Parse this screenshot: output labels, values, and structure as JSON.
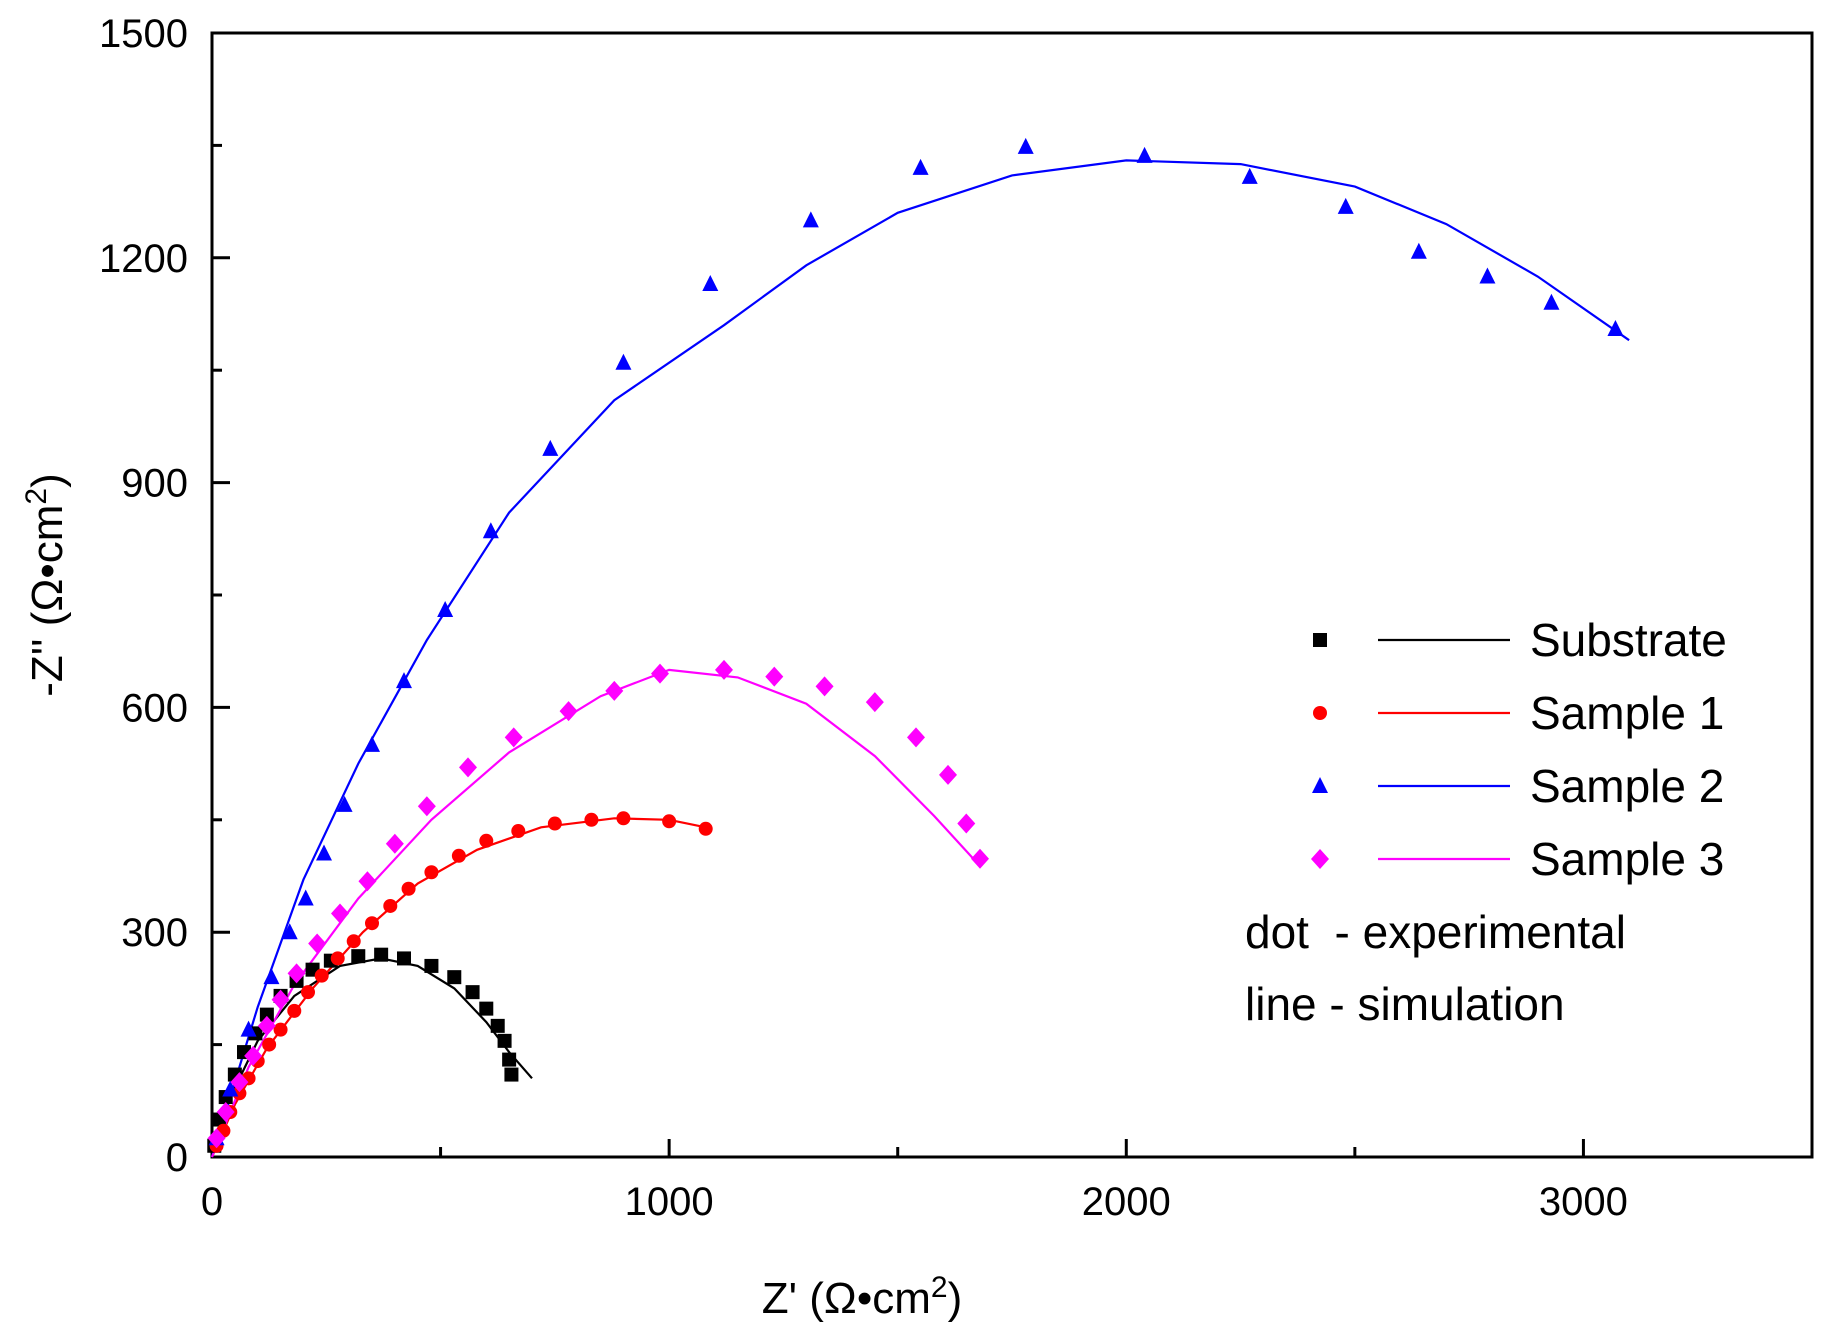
{
  "chart_data": {
    "type": "scatter",
    "title": "",
    "xlabel": {
      "main": "Z' (Ω•cm",
      "sup": "2",
      "close": ")"
    },
    "ylabel": {
      "main": "-Z'' (Ω•cm",
      "sup": "2",
      "close": ")"
    },
    "xlim": [
      0,
      3500
    ],
    "ylim": [
      0,
      1500
    ],
    "xticks": [
      0,
      1000,
      2000,
      3000
    ],
    "yticks": [
      0,
      300,
      600,
      900,
      1200,
      1500
    ],
    "grid": false,
    "legend_position": "right",
    "notes": [
      "dot  - experimental",
      "line - simulation"
    ],
    "series": [
      {
        "name": "Substrate",
        "color": "#000000",
        "marker": "square",
        "points": [
          [
            5,
            15
          ],
          [
            15,
            50
          ],
          [
            30,
            80
          ],
          [
            50,
            110
          ],
          [
            70,
            140
          ],
          [
            95,
            165
          ],
          [
            120,
            190
          ],
          [
            150,
            215
          ],
          [
            185,
            235
          ],
          [
            220,
            250
          ],
          [
            260,
            262
          ],
          [
            320,
            268
          ],
          [
            370,
            270
          ],
          [
            420,
            265
          ],
          [
            480,
            255
          ],
          [
            530,
            240
          ],
          [
            570,
            220
          ],
          [
            600,
            198
          ],
          [
            625,
            175
          ],
          [
            640,
            155
          ],
          [
            650,
            130
          ],
          [
            655,
            110
          ]
        ],
        "fit": [
          [
            0,
            0
          ],
          [
            40,
            80
          ],
          [
            100,
            155
          ],
          [
            180,
            215
          ],
          [
            280,
            255
          ],
          [
            370,
            265
          ],
          [
            450,
            255
          ],
          [
            530,
            225
          ],
          [
            600,
            180
          ],
          [
            650,
            140
          ],
          [
            700,
            105
          ]
        ]
      },
      {
        "name": "Sample 1",
        "color": "#ff0000",
        "marker": "circle",
        "points": [
          [
            10,
            15
          ],
          [
            25,
            35
          ],
          [
            40,
            60
          ],
          [
            60,
            85
          ],
          [
            80,
            105
          ],
          [
            100,
            128
          ],
          [
            125,
            150
          ],
          [
            150,
            170
          ],
          [
            180,
            195
          ],
          [
            210,
            220
          ],
          [
            240,
            242
          ],
          [
            275,
            265
          ],
          [
            310,
            288
          ],
          [
            350,
            312
          ],
          [
            390,
            335
          ],
          [
            430,
            358
          ],
          [
            480,
            380
          ],
          [
            540,
            402
          ],
          [
            600,
            422
          ],
          [
            670,
            435
          ],
          [
            750,
            445
          ],
          [
            830,
            450
          ],
          [
            900,
            452
          ],
          [
            1000,
            448
          ],
          [
            1080,
            438
          ]
        ],
        "fit": [
          [
            0,
            0
          ],
          [
            50,
            70
          ],
          [
            120,
            145
          ],
          [
            220,
            225
          ],
          [
            330,
            300
          ],
          [
            450,
            365
          ],
          [
            580,
            410
          ],
          [
            720,
            440
          ],
          [
            880,
            452
          ],
          [
            1000,
            450
          ],
          [
            1080,
            440
          ]
        ]
      },
      {
        "name": "Sample 2",
        "color": "#0000ff",
        "marker": "triangle",
        "points": [
          [
            10,
            25
          ],
          [
            40,
            90
          ],
          [
            80,
            170
          ],
          [
            130,
            240
          ],
          [
            170,
            300
          ],
          [
            205,
            345
          ],
          [
            245,
            405
          ],
          [
            290,
            470
          ],
          [
            350,
            550
          ],
          [
            420,
            635
          ],
          [
            510,
            730
          ],
          [
            610,
            835
          ],
          [
            740,
            945
          ],
          [
            900,
            1060
          ],
          [
            1090,
            1165
          ],
          [
            1310,
            1250
          ],
          [
            1550,
            1320
          ],
          [
            1780,
            1348
          ],
          [
            2040,
            1336
          ],
          [
            2270,
            1308
          ],
          [
            2480,
            1268
          ],
          [
            2640,
            1208
          ],
          [
            2790,
            1175
          ],
          [
            2930,
            1140
          ],
          [
            3070,
            1105
          ]
        ],
        "fit": [
          [
            0,
            0
          ],
          [
            100,
            200
          ],
          [
            200,
            370
          ],
          [
            320,
            525
          ],
          [
            470,
            690
          ],
          [
            650,
            860
          ],
          [
            880,
            1010
          ],
          [
            1120,
            1110
          ],
          [
            1300,
            1190
          ],
          [
            1500,
            1260
          ],
          [
            1750,
            1310
          ],
          [
            2000,
            1330
          ],
          [
            2250,
            1325
          ],
          [
            2500,
            1295
          ],
          [
            2700,
            1245
          ],
          [
            2900,
            1175
          ],
          [
            3100,
            1090
          ]
        ]
      },
      {
        "name": "Sample 3",
        "color": "#ff00ff",
        "marker": "diamond",
        "points": [
          [
            10,
            25
          ],
          [
            30,
            60
          ],
          [
            60,
            100
          ],
          [
            90,
            135
          ],
          [
            120,
            175
          ],
          [
            150,
            210
          ],
          [
            185,
            245
          ],
          [
            230,
            285
          ],
          [
            280,
            325
          ],
          [
            340,
            368
          ],
          [
            400,
            418
          ],
          [
            470,
            468
          ],
          [
            560,
            520
          ],
          [
            660,
            560
          ],
          [
            780,
            595
          ],
          [
            880,
            622
          ],
          [
            980,
            645
          ],
          [
            1120,
            650
          ],
          [
            1230,
            641
          ],
          [
            1340,
            628
          ],
          [
            1450,
            607
          ],
          [
            1540,
            560
          ],
          [
            1610,
            510
          ],
          [
            1650,
            445
          ],
          [
            1680,
            398
          ]
        ],
        "fit": [
          [
            0,
            0
          ],
          [
            80,
            120
          ],
          [
            180,
            230
          ],
          [
            320,
            345
          ],
          [
            480,
            450
          ],
          [
            650,
            540
          ],
          [
            850,
            615
          ],
          [
            1000,
            650
          ],
          [
            1150,
            640
          ],
          [
            1300,
            605
          ],
          [
            1450,
            535
          ],
          [
            1580,
            455
          ],
          [
            1670,
            395
          ]
        ]
      }
    ]
  }
}
